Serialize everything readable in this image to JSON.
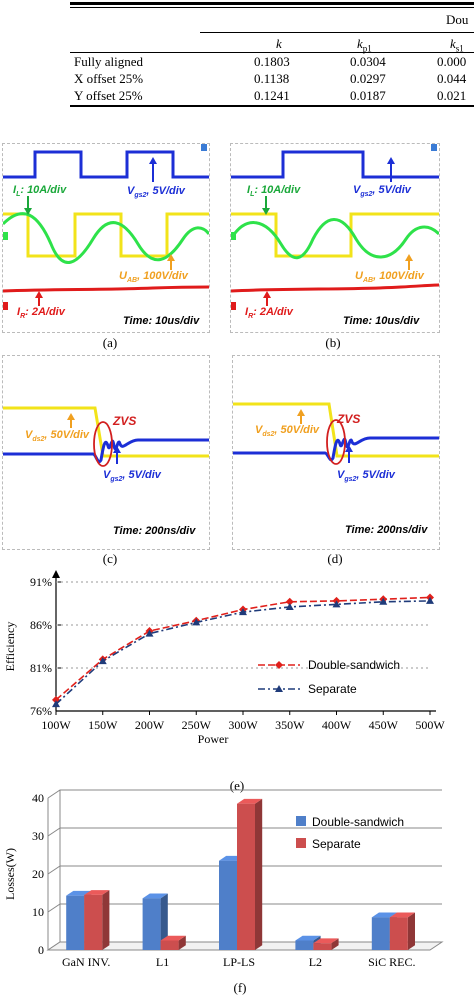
{
  "table": {
    "group_header": "Dou",
    "columns": [
      "k",
      "k_p1",
      "k_s1"
    ],
    "rows": [
      {
        "label": "Fully aligned",
        "values": [
          "0.1803",
          "0.0304",
          "0.000"
        ]
      },
      {
        "label": "X offset 25%",
        "values": [
          "0.1138",
          "0.0297",
          "0.044"
        ]
      },
      {
        "label": "Y offset 25%",
        "values": [
          "0.1241",
          "0.0187",
          "0.021"
        ]
      }
    ]
  },
  "scopes": {
    "a": {
      "caption": "(a)",
      "il": "I",
      "il_sub": "L",
      "il_rest": ": 10A/div",
      "vgs": "V",
      "vgs_sub": "gs2",
      "vgs_rest": ", 5V/div",
      "uab": "U",
      "uab_sub": "AB",
      "uab_rest": ", 100V/div",
      "ir": "I",
      "ir_sub": "R",
      "ir_rest": ": 2A/div",
      "time": "Time: 10us/div"
    },
    "b": {
      "caption": "(b)",
      "il": "I",
      "il_sub": "L",
      "il_rest": ": 10A/div",
      "vgs": "V",
      "vgs_sub": "gs2",
      "vgs_rest": ", 5V/div",
      "uab": "U",
      "uab_sub": "AB",
      "uab_rest": ", 100V/div",
      "ir": "I",
      "ir_sub": "R",
      "ir_rest": ": 2A/div",
      "time": "Time: 10us/div"
    },
    "c": {
      "caption": "(c)",
      "vds": "V",
      "vds_sub": "ds2",
      "vds_rest": ", 50V/div",
      "zvs": "ZVS",
      "vgs": "V",
      "vgs_sub": "gs2",
      "vgs_rest": ", 5V/div",
      "time": "Time: 200ns/div"
    },
    "d": {
      "caption": "(d)",
      "vds": "V",
      "vds_sub": "ds2",
      "vds_rest": ", 50V/div",
      "zvs": "ZVS",
      "vgs": "V",
      "vgs_sub": "gs2",
      "vgs_rest": ", 5V/div",
      "time": "Time: 200ns/div"
    }
  },
  "chart_e_caption": "(e)",
  "chart_f_caption": "(f)",
  "chart_data": [
    {
      "type": "line",
      "ylabel": "Efficiency",
      "xlabel": "Power",
      "x": [
        "100W",
        "150W",
        "200W",
        "250W",
        "300W",
        "350W",
        "400W",
        "450W",
        "500W"
      ],
      "y_ticks": [
        "76%",
        "81%",
        "86%",
        "91%"
      ],
      "ylim": [
        76,
        91
      ],
      "series": [
        {
          "name": "Double-sandwich",
          "color": "#e0201b",
          "values": [
            77.3,
            82.0,
            85.3,
            86.5,
            87.8,
            88.7,
            88.8,
            89.0,
            89.2
          ]
        },
        {
          "name": "Separate",
          "color": "#1f3b7a",
          "values": [
            76.8,
            81.8,
            85.0,
            86.3,
            87.5,
            88.1,
            88.4,
            88.7,
            88.8
          ]
        }
      ]
    },
    {
      "type": "bar",
      "ylabel": "Losses(W)",
      "categories": [
        "GaN INV.",
        "L1",
        "LP-LS",
        "L2",
        "SiC REC."
      ],
      "y_ticks": [
        "0",
        "10",
        "20",
        "30",
        "40"
      ],
      "ylim": [
        0,
        40
      ],
      "series": [
        {
          "name": "Double-sandwich",
          "color": "#4f7fc9",
          "values": [
            14.3,
            13.6,
            23.5,
            2.5,
            8.6
          ]
        },
        {
          "name": "Separate",
          "color": "#cc4e4e",
          "values": [
            14.5,
            2.5,
            38.5,
            1.8,
            8.6
          ]
        }
      ]
    }
  ]
}
